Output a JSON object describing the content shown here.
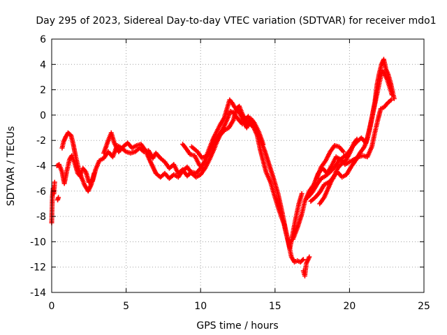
{
  "chart_data": {
    "type": "scatter",
    "title": "Day 295 of 2023, Sidereal Day-to-day VTEC variation (SDTVAR) for receiver mdo1",
    "xlabel": "GPS time / hours",
    "ylabel": "SDTVAR / TECUs",
    "xlim": [
      0,
      25
    ],
    "ylim": [
      -14,
      6
    ],
    "xticks": [
      0,
      5,
      10,
      15,
      20,
      25
    ],
    "yticks": [
      -14,
      -12,
      -10,
      -8,
      -6,
      -4,
      -2,
      0,
      2,
      4,
      6
    ],
    "grid": true,
    "marker": "+",
    "series": [
      {
        "name": "mdo1",
        "color": "#ff0000",
        "tracks": [
          [
            [
              0.0,
              -8.5
            ],
            [
              0.05,
              -6.4
            ],
            [
              0.1,
              -5.8
            ],
            [
              0.15,
              -6.2
            ],
            [
              0.2,
              -5.3
            ]
          ],
          [
            [
              0.4,
              -6.7
            ],
            [
              0.45,
              -6.5
            ]
          ],
          [
            [
              0.35,
              -4.0
            ],
            [
              0.5,
              -3.9
            ],
            [
              0.7,
              -4.5
            ],
            [
              0.85,
              -5.4
            ],
            [
              1.0,
              -4.5
            ],
            [
              1.2,
              -3.5
            ],
            [
              1.35,
              -3.2
            ],
            [
              1.55,
              -3.8
            ],
            [
              1.75,
              -4.6
            ],
            [
              1.9,
              -4.8
            ],
            [
              2.1,
              -4.2
            ],
            [
              2.3,
              -4.5
            ],
            [
              2.5,
              -5.3
            ],
            [
              2.75,
              -5.2
            ],
            [
              2.95,
              -4.3
            ],
            [
              3.2,
              -3.6
            ],
            [
              3.5,
              -3.4
            ],
            [
              3.8,
              -2.9
            ],
            [
              4.1,
              -3.3
            ],
            [
              4.4,
              -2.4
            ],
            [
              4.7,
              -2.6
            ],
            [
              5.0,
              -2.9
            ],
            [
              5.3,
              -3.0
            ],
            [
              5.6,
              -2.9
            ],
            [
              5.9,
              -2.6
            ],
            [
              6.2,
              -2.9
            ],
            [
              6.5,
              -2.8
            ],
            [
              6.8,
              -3.4
            ],
            [
              7.0,
              -3.0
            ],
            [
              7.3,
              -3.4
            ],
            [
              7.6,
              -3.7
            ],
            [
              7.9,
              -4.2
            ],
            [
              8.2,
              -3.9
            ],
            [
              8.5,
              -4.6
            ],
            [
              8.8,
              -4.3
            ],
            [
              9.1,
              -4.8
            ],
            [
              9.4,
              -4.5
            ],
            [
              9.7,
              -4.6
            ],
            [
              10.0,
              -4.2
            ],
            [
              10.3,
              -3.6
            ],
            [
              10.6,
              -2.9
            ],
            [
              10.9,
              -2.2
            ],
            [
              11.2,
              -1.6
            ],
            [
              11.5,
              -1.1
            ],
            [
              11.8,
              -0.3
            ],
            [
              12.0,
              0.3
            ],
            [
              12.2,
              0.2
            ],
            [
              12.5,
              -0.3
            ],
            [
              12.8,
              -0.7
            ],
            [
              13.1,
              -0.5
            ],
            [
              13.4,
              -0.8
            ],
            [
              13.7,
              -1.1
            ],
            [
              14.0,
              -1.9
            ],
            [
              14.3,
              -2.8
            ],
            [
              14.6,
              -3.9
            ],
            [
              14.9,
              -5.0
            ],
            [
              15.2,
              -6.2
            ],
            [
              15.5,
              -7.8
            ],
            [
              15.7,
              -9.0
            ],
            [
              15.9,
              -10.1
            ],
            [
              16.1,
              -11.2
            ],
            [
              16.3,
              -11.6
            ],
            [
              16.5,
              -11.5
            ],
            [
              16.7,
              -11.6
            ],
            [
              16.9,
              -11.4
            ]
          ],
          [
            [
              0.7,
              -2.6
            ],
            [
              0.8,
              -2.1
            ],
            [
              0.95,
              -1.7
            ],
            [
              1.1,
              -1.4
            ],
            [
              1.3,
              -1.6
            ],
            [
              1.45,
              -2.3
            ],
            [
              1.6,
              -3.2
            ],
            [
              1.8,
              -4.2
            ],
            [
              2.0,
              -4.9
            ],
            [
              2.2,
              -5.5
            ],
            [
              2.45,
              -6.0
            ],
            [
              2.65,
              -5.5
            ],
            [
              2.85,
              -4.6
            ]
          ],
          [
            [
              3.5,
              -3.0
            ],
            [
              3.8,
              -2.0
            ],
            [
              4.0,
              -1.4
            ],
            [
              4.2,
              -2.2
            ],
            [
              4.5,
              -2.9
            ],
            [
              4.8,
              -2.5
            ],
            [
              5.1,
              -2.2
            ],
            [
              5.4,
              -2.6
            ],
            [
              5.7,
              -2.4
            ],
            [
              6.0,
              -2.3
            ],
            [
              6.3,
              -2.8
            ],
            [
              6.6,
              -3.6
            ],
            [
              6.8,
              -4.1
            ],
            [
              7.0,
              -4.6
            ],
            [
              7.3,
              -4.9
            ],
            [
              7.6,
              -4.6
            ],
            [
              7.9,
              -5.0
            ],
            [
              8.2,
              -4.7
            ],
            [
              8.5,
              -4.9
            ],
            [
              8.8,
              -4.4
            ],
            [
              9.1,
              -4.1
            ],
            [
              9.4,
              -4.6
            ],
            [
              9.7,
              -4.9
            ],
            [
              10.0,
              -4.7
            ],
            [
              10.3,
              -4.2
            ],
            [
              10.6,
              -3.5
            ],
            [
              10.9,
              -2.7
            ],
            [
              11.1,
              -2.1
            ],
            [
              11.3,
              -1.6
            ],
            [
              11.6,
              -1.2
            ],
            [
              11.9,
              -1.0
            ],
            [
              12.2,
              -0.4
            ],
            [
              12.4,
              0.5
            ],
            [
              12.6,
              0.7
            ],
            [
              12.8,
              0.1
            ],
            [
              13.0,
              -0.4
            ],
            [
              13.2,
              -0.1
            ],
            [
              13.5,
              -0.8
            ],
            [
              13.8,
              -1.6
            ],
            [
              14.0,
              -2.7
            ],
            [
              14.2,
              -3.6
            ],
            [
              14.4,
              -4.5
            ],
            [
              14.7,
              -5.3
            ],
            [
              15.0,
              -6.5
            ],
            [
              15.3,
              -7.6
            ],
            [
              15.6,
              -8.6
            ],
            [
              15.8,
              -9.6
            ],
            [
              16.0,
              -10.5
            ],
            [
              16.2,
              -9.3
            ],
            [
              16.4,
              -8.1
            ],
            [
              16.6,
              -7.0
            ],
            [
              16.8,
              -6.2
            ]
          ],
          [
            [
              9.4,
              -2.5
            ],
            [
              9.8,
              -2.9
            ],
            [
              10.1,
              -3.4
            ],
            [
              10.4,
              -3.2
            ],
            [
              10.6,
              -2.6
            ],
            [
              10.8,
              -2.0
            ],
            [
              11.0,
              -1.5
            ],
            [
              11.3,
              -0.8
            ],
            [
              11.6,
              -0.2
            ],
            [
              11.8,
              0.6
            ],
            [
              11.95,
              1.2
            ],
            [
              12.1,
              1.0
            ],
            [
              12.3,
              0.6
            ],
            [
              12.6,
              0.2
            ],
            [
              12.9,
              -0.5
            ],
            [
              13.1,
              -1.0
            ],
            [
              13.4,
              -0.3
            ],
            [
              13.6,
              -0.6
            ],
            [
              13.9,
              -1.3
            ],
            [
              14.2,
              -2.3
            ]
          ],
          [
            [
              8.8,
              -2.3
            ],
            [
              9.0,
              -2.6
            ],
            [
              9.3,
              -3.1
            ],
            [
              9.6,
              -3.2
            ],
            [
              9.9,
              -3.9
            ],
            [
              10.2,
              -4.3
            ]
          ],
          [
            [
              16.9,
              -12.3
            ],
            [
              17.0,
              -12.7
            ],
            [
              17.1,
              -11.7
            ],
            [
              17.3,
              -11.2
            ]
          ],
          [
            [
              16.2,
              -9.8
            ],
            [
              16.5,
              -8.9
            ],
            [
              16.8,
              -7.8
            ],
            [
              17.0,
              -6.8
            ],
            [
              17.3,
              -6.0
            ],
            [
              17.6,
              -5.5
            ],
            [
              17.9,
              -4.6
            ],
            [
              18.2,
              -4.2
            ],
            [
              18.5,
              -4.6
            ],
            [
              18.8,
              -4.0
            ],
            [
              19.1,
              -3.3
            ],
            [
              19.4,
              -3.5
            ],
            [
              19.7,
              -3.9
            ],
            [
              20.0,
              -3.7
            ],
            [
              20.3,
              -3.5
            ],
            [
              20.6,
              -3.3
            ],
            [
              20.9,
              -3.2
            ],
            [
              21.2,
              -3.3
            ],
            [
              21.5,
              -2.5
            ],
            [
              21.7,
              -1.4
            ],
            [
              21.9,
              -0.4
            ],
            [
              22.1,
              0.5
            ],
            [
              22.3,
              0.6
            ],
            [
              22.6,
              1.0
            ],
            [
              22.8,
              1.2
            ]
          ],
          [
            [
              17.2,
              -6.5
            ],
            [
              17.5,
              -6.1
            ],
            [
              17.8,
              -5.5
            ],
            [
              18.1,
              -5.0
            ],
            [
              18.4,
              -4.8
            ],
            [
              18.7,
              -4.5
            ],
            [
              19.0,
              -4.1
            ],
            [
              19.3,
              -3.6
            ],
            [
              19.6,
              -3.3
            ],
            [
              19.9,
              -3.0
            ],
            [
              20.2,
              -2.5
            ],
            [
              20.5,
              -2.1
            ],
            [
              20.8,
              -1.8
            ],
            [
              21.1,
              -2.2
            ],
            [
              21.3,
              -1.3
            ],
            [
              21.5,
              -0.2
            ],
            [
              21.7,
              1.0
            ],
            [
              21.85,
              2.4
            ],
            [
              22.0,
              3.3
            ],
            [
              22.15,
              4.0
            ],
            [
              22.3,
              4.4
            ],
            [
              22.45,
              3.6
            ],
            [
              22.6,
              3.2
            ],
            [
              22.75,
              2.6
            ],
            [
              22.9,
              1.8
            ],
            [
              23.0,
              1.3
            ]
          ],
          [
            [
              17.4,
              -6.8
            ],
            [
              17.7,
              -6.5
            ],
            [
              18.0,
              -6.1
            ],
            [
              18.3,
              -5.5
            ],
            [
              18.6,
              -5.3
            ],
            [
              18.9,
              -5.0
            ],
            [
              19.2,
              -4.2
            ],
            [
              19.5,
              -3.8
            ],
            [
              19.8,
              -3.5
            ],
            [
              20.1,
              -2.8
            ],
            [
              20.3,
              -2.2
            ],
            [
              20.5,
              -1.9
            ]
          ],
          [
            [
              18.0,
              -7.0
            ],
            [
              18.3,
              -6.5
            ],
            [
              18.6,
              -5.7
            ],
            [
              18.9,
              -4.9
            ],
            [
              19.2,
              -4.5
            ],
            [
              19.5,
              -4.9
            ],
            [
              19.8,
              -4.7
            ],
            [
              20.1,
              -4.1
            ],
            [
              20.4,
              -3.6
            ],
            [
              20.7,
              -3.0
            ],
            [
              21.0,
              -2.5
            ],
            [
              21.2,
              -1.9
            ],
            [
              21.4,
              -0.9
            ],
            [
              21.6,
              0.3
            ],
            [
              21.8,
              1.4
            ],
            [
              22.0,
              2.5
            ],
            [
              22.2,
              3.5
            ],
            [
              22.35,
              3.3
            ],
            [
              22.5,
              2.9
            ],
            [
              22.7,
              2.2
            ],
            [
              22.85,
              1.6
            ]
          ],
          [
            [
              17.8,
              -5.0
            ],
            [
              18.1,
              -4.1
            ],
            [
              18.4,
              -3.6
            ],
            [
              18.7,
              -2.9
            ],
            [
              19.0,
              -2.4
            ],
            [
              19.3,
              -2.5
            ],
            [
              19.6,
              -2.9
            ]
          ]
        ]
      }
    ]
  }
}
